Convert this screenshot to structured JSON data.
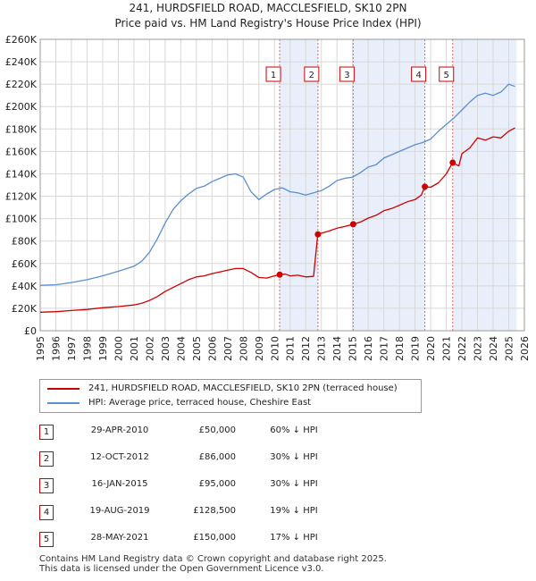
{
  "header": {
    "title": "241, HURDSFIELD ROAD, MACCLESFIELD, SK10 2PN",
    "subtitle": "Price paid vs. HM Land Registry's House Price Index (HPI)"
  },
  "chart_data": {
    "type": "line",
    "title": "241, HURDSFIELD ROAD, MACCLESFIELD, SK10 2PN",
    "subtitle": "Price paid vs. HM Land Registry's House Price Index (HPI)",
    "xlabel": "",
    "ylabel": "",
    "xlim": [
      1995,
      2026
    ],
    "ylim": [
      0,
      260000
    ],
    "x_ticks": [
      1995,
      1996,
      1997,
      1998,
      1999,
      2000,
      2001,
      2002,
      2003,
      2004,
      2005,
      2006,
      2007,
      2008,
      2009,
      2010,
      2011,
      2012,
      2013,
      2014,
      2015,
      2016,
      2017,
      2018,
      2019,
      2020,
      2021,
      2022,
      2023,
      2024,
      2025,
      2026
    ],
    "y_ticks": [
      0,
      20000,
      40000,
      60000,
      80000,
      100000,
      120000,
      140000,
      160000,
      180000,
      200000,
      220000,
      240000,
      260000
    ],
    "y_tick_labels": [
      "£0",
      "£20K",
      "£40K",
      "£60K",
      "£80K",
      "£100K",
      "£120K",
      "£140K",
      "£160K",
      "£180K",
      "£200K",
      "£220K",
      "£240K",
      "£260K"
    ],
    "grid": true,
    "legend_position": "below-chart",
    "series": [
      {
        "name": "241, HURDSFIELD ROAD, MACCLESFIELD, SK10 2PN (terraced house)",
        "color": "#cc0000",
        "x": [
          1995.0,
          1996.0,
          1997.0,
          1998.0,
          1999.0,
          2000.0,
          2001.0,
          2001.5,
          2002.0,
          2002.5,
          2003.0,
          2003.5,
          2004.0,
          2004.5,
          2005.0,
          2005.5,
          2006.0,
          2006.5,
          2007.0,
          2007.5,
          2008.0,
          2008.5,
          2009.0,
          2009.5,
          2010.0,
          2010.33,
          2010.7,
          2011.0,
          2011.5,
          2012.0,
          2012.5,
          2012.77,
          2013.0,
          2013.5,
          2014.0,
          2014.5,
          2015.05,
          2015.5,
          2016.0,
          2016.5,
          2017.0,
          2017.5,
          2018.0,
          2018.5,
          2019.0,
          2019.4,
          2019.63,
          2020.0,
          2020.5,
          2021.0,
          2021.41,
          2021.8,
          2022.0,
          2022.5,
          2023.0,
          2023.5,
          2024.0,
          2024.5,
          2025.0,
          2025.4
        ],
        "values": [
          16500,
          17000,
          18000,
          19000,
          20500,
          21500,
          23000,
          24500,
          27000,
          30500,
          35000,
          38500,
          42000,
          45500,
          48000,
          49000,
          51000,
          52500,
          54000,
          55500,
          55500,
          52000,
          47500,
          47000,
          49000,
          50000,
          50500,
          49000,
          49500,
          48000,
          48500,
          86000,
          87000,
          89000,
          91500,
          93000,
          95000,
          97000,
          100500,
          103000,
          107000,
          109000,
          112000,
          115000,
          117000,
          121000,
          128500,
          128000,
          132000,
          140000,
          150000,
          147000,
          158000,
          163000,
          172000,
          170000,
          173000,
          172000,
          178000,
          181000
        ]
      },
      {
        "name": "HPI: Average price, terraced house, Cheshire East",
        "color": "#5b8fcf",
        "x": [
          1995.0,
          1996.0,
          1997.0,
          1998.0,
          1999.0,
          2000.0,
          2001.0,
          2001.5,
          2002.0,
          2002.5,
          2003.0,
          2003.5,
          2004.0,
          2004.5,
          2005.0,
          2005.5,
          2006.0,
          2006.5,
          2007.0,
          2007.5,
          2008.0,
          2008.5,
          2009.0,
          2009.5,
          2010.0,
          2010.5,
          2011.0,
          2011.5,
          2012.0,
          2012.5,
          2013.0,
          2013.5,
          2014.0,
          2014.5,
          2015.0,
          2015.5,
          2016.0,
          2016.5,
          2017.0,
          2017.5,
          2018.0,
          2018.5,
          2019.0,
          2019.5,
          2020.0,
          2020.5,
          2021.0,
          2021.5,
          2022.0,
          2022.5,
          2023.0,
          2023.5,
          2024.0,
          2024.5,
          2025.0,
          2025.4
        ],
        "values": [
          40500,
          41000,
          43000,
          45500,
          49000,
          53000,
          57500,
          62000,
          70000,
          82000,
          96000,
          108000,
          116000,
          122000,
          127000,
          129000,
          133000,
          136000,
          139000,
          140000,
          137000,
          124000,
          117000,
          122000,
          126000,
          127500,
          124000,
          123000,
          121000,
          123000,
          125000,
          129000,
          134000,
          136000,
          137000,
          141000,
          146000,
          148000,
          154000,
          157000,
          160000,
          163000,
          166000,
          168000,
          171000,
          178000,
          184000,
          190000,
          197000,
          204000,
          210000,
          212000,
          210000,
          213000,
          220000,
          218000
        ]
      }
    ],
    "sale_markers": [
      {
        "label": "1",
        "x": 2010.33,
        "value": 50000
      },
      {
        "label": "2",
        "x": 2012.78,
        "value": 86000
      },
      {
        "label": "3",
        "x": 2015.04,
        "value": 95000
      },
      {
        "label": "4",
        "x": 2019.63,
        "value": 128500
      },
      {
        "label": "5",
        "x": 2021.41,
        "value": 150000
      }
    ],
    "shaded_ranges": [
      [
        2010.33,
        2012.78
      ],
      [
        2015.04,
        2019.63
      ],
      [
        2021.41,
        2025.5
      ]
    ]
  },
  "legend": {
    "items": [
      {
        "label": "241, HURDSFIELD ROAD, MACCLESFIELD, SK10 2PN (terraced house)",
        "color": "#cc0000"
      },
      {
        "label": "HPI: Average price, terraced house, Cheshire East",
        "color": "#5b8fcf"
      }
    ]
  },
  "sales_table": [
    {
      "num": "1",
      "date": "29-APR-2010",
      "price": "£50,000",
      "hpi": "60% ↓ HPI"
    },
    {
      "num": "2",
      "date": "12-OCT-2012",
      "price": "£86,000",
      "hpi": "30% ↓ HPI"
    },
    {
      "num": "3",
      "date": "16-JAN-2015",
      "price": "£95,000",
      "hpi": "30% ↓ HPI"
    },
    {
      "num": "4",
      "date": "19-AUG-2019",
      "price": "£128,500",
      "hpi": "19% ↓ HPI"
    },
    {
      "num": "5",
      "date": "28-MAY-2021",
      "price": "£150,000",
      "hpi": "17% ↓ HPI"
    }
  ],
  "footer": {
    "line1": "Contains HM Land Registry data © Crown copyright and database right 2025.",
    "line2": "This data is licensed under the Open Government Licence v3.0."
  }
}
